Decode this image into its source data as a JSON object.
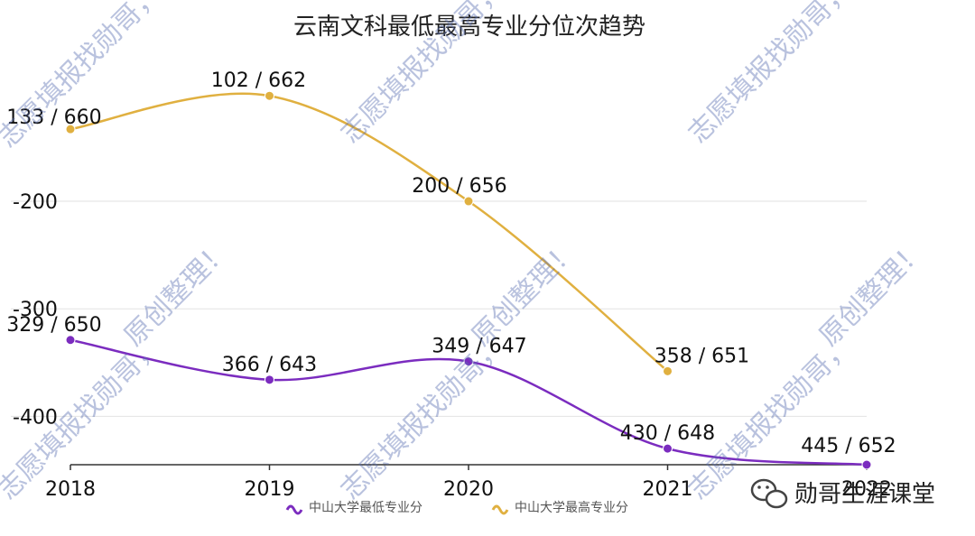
{
  "chart_data": {
    "type": "line",
    "title": "云南文科最低最高专业分位次趋势",
    "categories": [
      "2018",
      "2019",
      "2020",
      "2021",
      "2022"
    ],
    "ylim": [
      -445,
      -80
    ],
    "y_ticks": [
      -200,
      -300,
      -400
    ],
    "y_tick_labels": [
      "-200",
      "-300",
      "-400"
    ],
    "grid": true,
    "legend_position": "bottom",
    "series": [
      {
        "name": "中山大学最低专业分",
        "color": "#7b2cbf",
        "values": [
          -329,
          -366,
          -349,
          -430,
          -445
        ],
        "labels": [
          "329 / 650",
          "366 / 643",
          "349 / 647",
          "430 / 648",
          "445 / 652"
        ]
      },
      {
        "name": "中山大学最高专业分",
        "color": "#e0b040",
        "values": [
          -133,
          -102,
          -200,
          -358,
          null
        ],
        "labels": [
          "133 / 660",
          "102 / 662",
          "200 / 656",
          "358 / 651",
          null
        ]
      }
    ]
  },
  "watermark": {
    "text1": "志愿填报找勋哥，",
    "text2": "原创整理！"
  },
  "brand": {
    "text": "勋哥生涯课堂",
    "icon": "wechat-icon"
  }
}
